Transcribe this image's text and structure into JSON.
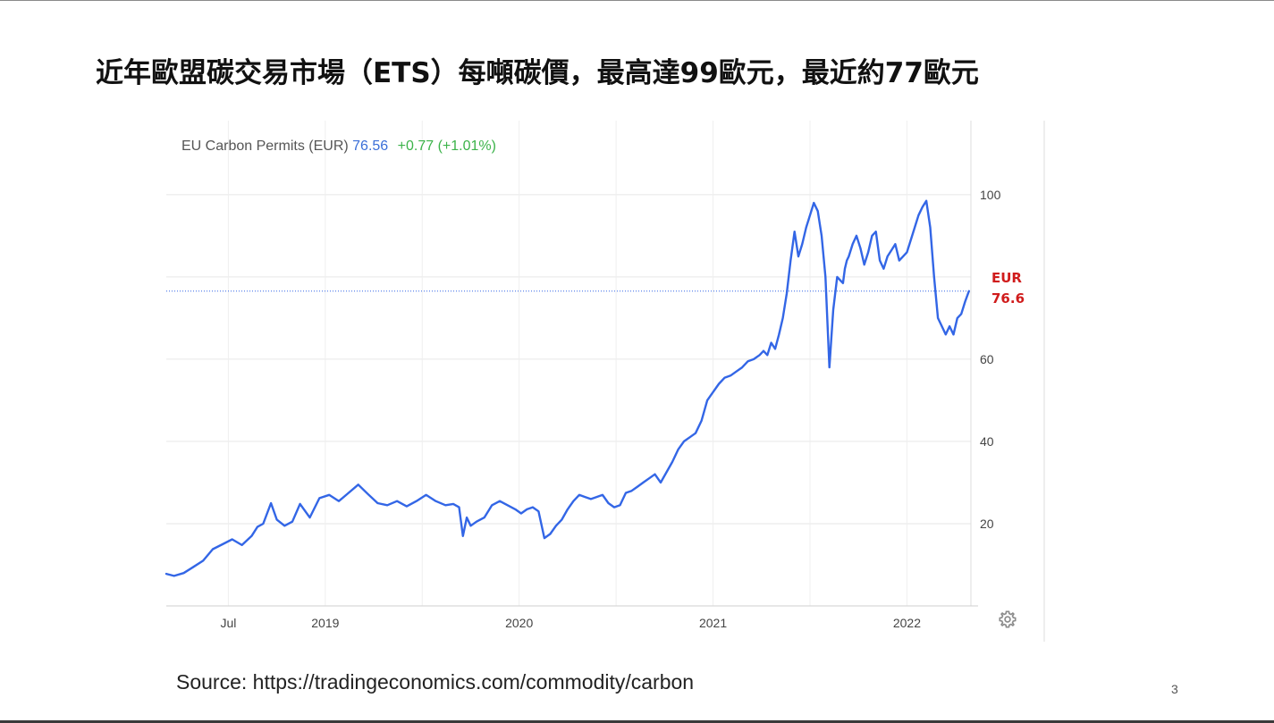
{
  "slide": {
    "title": "近年歐盟碳交易市場（ETS）每噸碳價，最高達99歐元，最近約77歐元",
    "source": "Source: https://tradingeconomics.com/commodity/carbon",
    "page_number": "3"
  },
  "chart_header": {
    "name": "EU Carbon Permits (EUR)",
    "price": "76.56",
    "change": "+0.77 (+1.01%)"
  },
  "current_label": {
    "line1": "EUR",
    "line2": "76.6"
  },
  "colors": {
    "series": "#3366e6",
    "header_price": "#3b6fd8",
    "header_change": "#3cb34a",
    "current_label": "#d01c1c",
    "grid": "#e6e6e6"
  },
  "icons": {
    "settings": "gear-icon"
  },
  "chart_data": {
    "type": "line",
    "title": "EU Carbon Permits (EUR)",
    "xlabel": "",
    "ylabel": "",
    "x_tick_labels": [
      "Jul",
      "2019",
      "2020",
      "2021",
      "2022"
    ],
    "x_ticks": [
      2018.5,
      2019.0,
      2019.5,
      2020.0,
      2020.5,
      2021.0,
      2021.5,
      2022.0
    ],
    "x_tick_label_positions": [
      2018.5,
      2019.0,
      2020.0,
      2021.0,
      2022.0
    ],
    "y_ticks": [
      20,
      40,
      60,
      80,
      100
    ],
    "y_tick_labels": [
      "20",
      "40",
      "60",
      "",
      "100"
    ],
    "xlim": [
      2018.18,
      2022.33
    ],
    "ylim": [
      0,
      118
    ],
    "grid": true,
    "axis_side": "right",
    "current_value": 76.56,
    "current_value_line": true,
    "series": [
      {
        "x": [
          2018.18,
          2018.22,
          2018.27,
          2018.32,
          2018.37,
          2018.42,
          2018.47,
          2018.52,
          2018.57,
          2018.62,
          2018.65,
          2018.68,
          2018.72,
          2018.75,
          2018.79,
          2018.83,
          2018.87,
          2018.92,
          2018.97,
          2019.02,
          2019.07,
          2019.12,
          2019.17,
          2019.22,
          2019.27,
          2019.32,
          2019.37,
          2019.42,
          2019.47,
          2019.52,
          2019.57,
          2019.62,
          2019.66,
          2019.69,
          2019.71,
          2019.73,
          2019.75,
          2019.78,
          2019.82,
          2019.86,
          2019.9,
          2019.94,
          2019.98,
          2020.01,
          2020.04,
          2020.07,
          2020.1,
          2020.13,
          2020.16,
          2020.19,
          2020.22,
          2020.25,
          2020.28,
          2020.31,
          2020.34,
          2020.37,
          2020.4,
          2020.43,
          2020.46,
          2020.49,
          2020.52,
          2020.55,
          2020.58,
          2020.61,
          2020.64,
          2020.67,
          2020.7,
          2020.73,
          2020.76,
          2020.79,
          2020.82,
          2020.85,
          2020.88,
          2020.91,
          2020.94,
          2020.97,
          2021.0,
          2021.03,
          2021.06,
          2021.09,
          2021.12,
          2021.15,
          2021.18,
          2021.21,
          2021.24,
          2021.26,
          2021.28,
          2021.3,
          2021.32,
          2021.34,
          2021.36,
          2021.38,
          2021.4,
          2021.42,
          2021.44,
          2021.46,
          2021.48,
          2021.5,
          2021.52,
          2021.54,
          2021.56,
          2021.58,
          2021.6,
          2021.62,
          2021.64,
          2021.66,
          2021.67,
          2021.68,
          2021.69,
          2021.7,
          2021.72,
          2021.74,
          2021.76,
          2021.78,
          2021.8,
          2021.82,
          2021.84,
          2021.86,
          2021.88,
          2021.9,
          2021.92,
          2021.94,
          2021.96,
          2021.98,
          2022.0,
          2022.02,
          2022.04,
          2022.06,
          2022.08,
          2022.1,
          2022.12,
          2022.14,
          2022.16,
          2022.18,
          2022.2,
          2022.22,
          2022.24,
          2022.26,
          2022.28,
          2022.3,
          2022.32
        ],
        "values": [
          7.8,
          7.3,
          8.0,
          9.5,
          11.0,
          13.8,
          15.0,
          16.2,
          14.8,
          17.0,
          19.2,
          20.0,
          25.0,
          21.0,
          19.5,
          20.5,
          24.8,
          21.5,
          26.2,
          27.0,
          25.5,
          27.5,
          29.5,
          27.2,
          25.0,
          24.5,
          25.5,
          24.2,
          25.5,
          27.0,
          25.5,
          24.5,
          24.8,
          24.0,
          17.0,
          21.5,
          19.5,
          20.5,
          21.5,
          24.5,
          25.5,
          24.5,
          23.5,
          22.5,
          23.5,
          24.0,
          23.0,
          16.5,
          17.5,
          19.5,
          21.0,
          23.5,
          25.5,
          27.0,
          26.5,
          26.0,
          26.5,
          27.0,
          25.0,
          24.0,
          24.5,
          27.5,
          28.0,
          29.0,
          30.0,
          31.0,
          32.0,
          30.0,
          32.5,
          35.0,
          38.0,
          40.0,
          41.0,
          42.0,
          45.0,
          50.0,
          52.0,
          54.0,
          55.5,
          56.0,
          57.0,
          58.0,
          59.5,
          60.0,
          61.0,
          62.0,
          61.0,
          64.0,
          62.5,
          66.0,
          70.0,
          76.0,
          84.0,
          91.0,
          85.0,
          88.0,
          92.0,
          95.0,
          98.0,
          96.0,
          90.0,
          80.0,
          58.0,
          72.0,
          80.0,
          79.0,
          78.5,
          82.0,
          84.0,
          85.0,
          88.0,
          90.0,
          87.0,
          83.0,
          86.0,
          90.0,
          91.0,
          84.0,
          82.0,
          85.0,
          86.5,
          88.0,
          84.0,
          85.0,
          86.0,
          89.0,
          92.0,
          95.0,
          97.0,
          98.5,
          92.0,
          80.0,
          70.0,
          68.0,
          66.0,
          68.0,
          66.0,
          70.0,
          71.0,
          74.0,
          76.56
        ]
      }
    ]
  }
}
